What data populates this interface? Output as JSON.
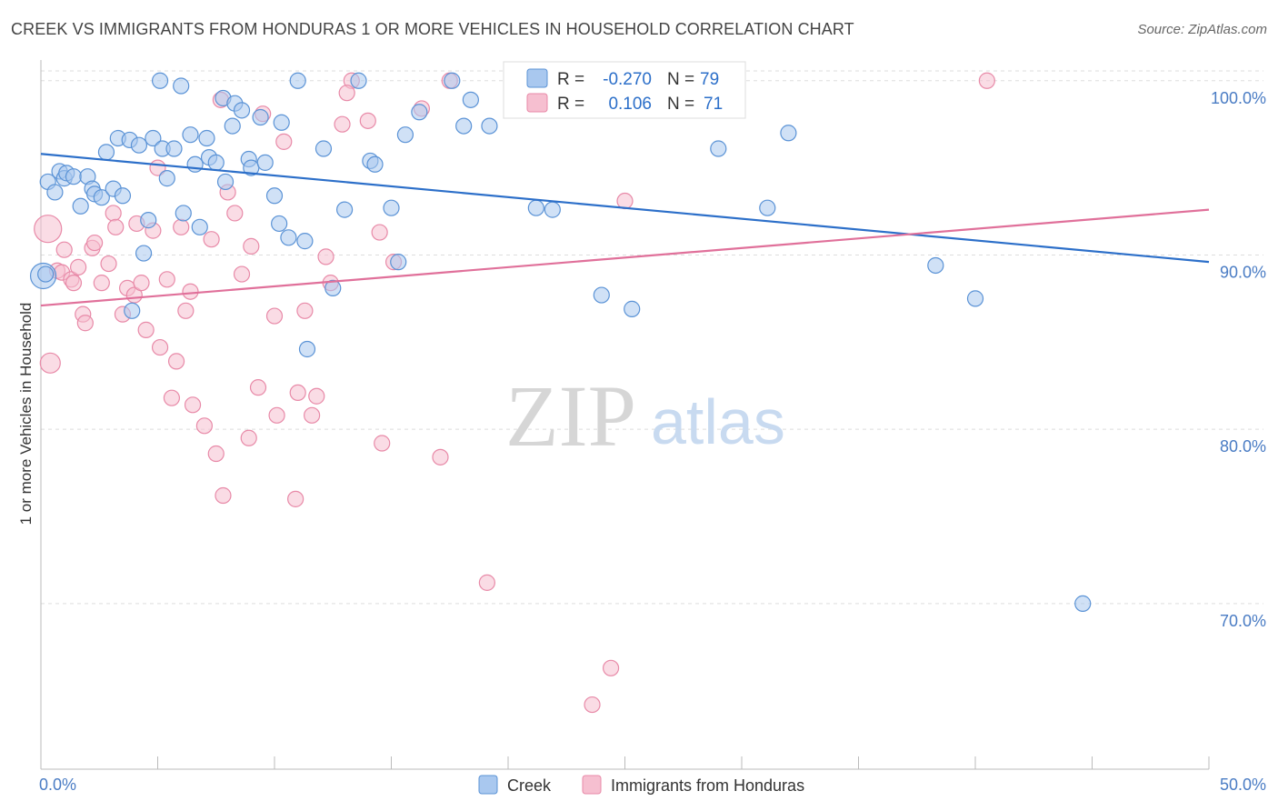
{
  "title": "CREEK VS IMMIGRANTS FROM HONDURAS 1 OR MORE VEHICLES IN HOUSEHOLD CORRELATION CHART",
  "source": "Source: ZipAtlas.com",
  "watermark": {
    "zip": "ZIP",
    "atlas": "atlas"
  },
  "colors": {
    "creek_fill": "#a9c8ef",
    "creek_stroke": "#5b93d6",
    "creek_line": "#2c6fc9",
    "honduras_fill": "#f6bfd0",
    "honduras_stroke": "#e88aa8",
    "honduras_line": "#e0709a",
    "stat_value": "#2c6fc9",
    "grid": "#dddddd"
  },
  "stats": [
    {
      "r_label": "R =",
      "r_value": "-0.270",
      "n_label": "N =",
      "n_value": "79"
    },
    {
      "r_label": "R =",
      "r_value": "0.106",
      "n_label": "N =",
      "n_value": "71"
    }
  ],
  "chart_data": {
    "type": "scatter",
    "title": "CREEK VS IMMIGRANTS FROM HONDURAS 1 OR MORE VEHICLES IN HOUSEHOLD CORRELATION CHART",
    "xlabel": "",
    "ylabel": "1 or more Vehicles in Household",
    "xlim": [
      0,
      50
    ],
    "ylim": [
      60.5,
      101.5
    ],
    "x_tick_labels": [
      "0.0%",
      "50.0%"
    ],
    "y_ticks": [
      70,
      80,
      90,
      100
    ],
    "y_tick_labels": [
      "70.0%",
      "80.0%",
      "90.0%",
      "100.0%"
    ],
    "grid": true,
    "legend_position": "bottom-center",
    "series": [
      {
        "name": "Creek",
        "trend": {
          "x": [
            0,
            50
          ],
          "y": [
            95.8,
            89.6
          ]
        },
        "points": [
          [
            0.1,
            88.8
          ],
          [
            0.3,
            94.2
          ],
          [
            0.6,
            93.6
          ],
          [
            0.8,
            94.8
          ],
          [
            1.0,
            94.4
          ],
          [
            1.1,
            94.7
          ],
          [
            1.4,
            94.5
          ],
          [
            1.7,
            92.8
          ],
          [
            2.0,
            94.5
          ],
          [
            2.2,
            93.8
          ],
          [
            2.3,
            93.5
          ],
          [
            2.6,
            93.3
          ],
          [
            2.8,
            95.9
          ],
          [
            3.1,
            93.8
          ],
          [
            3.3,
            96.7
          ],
          [
            3.5,
            93.4
          ],
          [
            3.8,
            96.6
          ],
          [
            3.9,
            86.8
          ],
          [
            4.2,
            96.3
          ],
          [
            4.4,
            90.1
          ],
          [
            4.6,
            92.0
          ],
          [
            4.8,
            96.7
          ],
          [
            5.1,
            100.0
          ],
          [
            5.2,
            96.1
          ],
          [
            5.4,
            94.4
          ],
          [
            5.7,
            96.1
          ],
          [
            6.0,
            99.7
          ],
          [
            6.1,
            92.4
          ],
          [
            6.4,
            96.9
          ],
          [
            6.6,
            95.2
          ],
          [
            6.8,
            91.6
          ],
          [
            7.1,
            96.7
          ],
          [
            7.2,
            95.6
          ],
          [
            7.5,
            95.3
          ],
          [
            7.8,
            99.0
          ],
          [
            7.9,
            94.2
          ],
          [
            8.2,
            97.4
          ],
          [
            8.3,
            98.7
          ],
          [
            8.6,
            98.3
          ],
          [
            8.9,
            95.5
          ],
          [
            9.0,
            95.0
          ],
          [
            9.6,
            95.3
          ],
          [
            9.4,
            97.9
          ],
          [
            10.0,
            93.4
          ],
          [
            10.3,
            97.6
          ],
          [
            10.2,
            91.8
          ],
          [
            10.6,
            91.0
          ],
          [
            11.0,
            100.0
          ],
          [
            11.4,
            84.6
          ],
          [
            11.3,
            90.8
          ],
          [
            12.1,
            96.1
          ],
          [
            12.5,
            88.1
          ],
          [
            13.0,
            92.6
          ],
          [
            13.6,
            100.0
          ],
          [
            14.1,
            95.4
          ],
          [
            14.3,
            95.2
          ],
          [
            15.0,
            92.7
          ],
          [
            15.3,
            89.6
          ],
          [
            15.6,
            96.9
          ],
          [
            16.2,
            98.2
          ],
          [
            17.6,
            100.0
          ],
          [
            18.1,
            97.4
          ],
          [
            18.4,
            98.9
          ],
          [
            19.2,
            97.4
          ],
          [
            20.3,
            99.0
          ],
          [
            21.2,
            92.7
          ],
          [
            21.9,
            92.6
          ],
          [
            22.1,
            99.0
          ],
          [
            24.0,
            87.7
          ],
          [
            24.9,
            99.0
          ],
          [
            25.3,
            86.9
          ],
          [
            27.6,
            98.5
          ],
          [
            29.0,
            96.1
          ],
          [
            31.1,
            92.7
          ],
          [
            32.0,
            97.0
          ],
          [
            38.3,
            89.4
          ],
          [
            40.0,
            87.5
          ],
          [
            44.6,
            70.0
          ],
          [
            0.2,
            88.9
          ]
        ]
      },
      {
        "name": "Immigrants from Honduras",
        "trend": {
          "x": [
            0,
            50
          ],
          "y": [
            87.1,
            92.6
          ]
        },
        "points": [
          [
            0.3,
            91.5
          ],
          [
            0.4,
            83.8
          ],
          [
            0.7,
            89.1
          ],
          [
            0.9,
            89.0
          ],
          [
            1.0,
            90.3
          ],
          [
            1.3,
            88.6
          ],
          [
            1.4,
            88.4
          ],
          [
            1.6,
            89.3
          ],
          [
            1.8,
            86.6
          ],
          [
            1.9,
            86.1
          ],
          [
            2.2,
            90.4
          ],
          [
            2.3,
            90.7
          ],
          [
            2.6,
            88.4
          ],
          [
            2.9,
            89.5
          ],
          [
            3.1,
            92.4
          ],
          [
            3.2,
            91.6
          ],
          [
            3.5,
            86.6
          ],
          [
            3.7,
            88.1
          ],
          [
            4.0,
            87.7
          ],
          [
            4.1,
            91.8
          ],
          [
            4.3,
            88.4
          ],
          [
            4.5,
            85.7
          ],
          [
            4.8,
            91.4
          ],
          [
            5.0,
            95.0
          ],
          [
            5.1,
            84.7
          ],
          [
            5.4,
            88.6
          ],
          [
            5.6,
            81.8
          ],
          [
            5.8,
            83.9
          ],
          [
            6.0,
            91.6
          ],
          [
            6.2,
            86.8
          ],
          [
            6.4,
            87.9
          ],
          [
            6.5,
            81.4
          ],
          [
            7.0,
            80.2
          ],
          [
            7.3,
            90.9
          ],
          [
            7.5,
            78.6
          ],
          [
            7.7,
            98.9
          ],
          [
            7.8,
            76.2
          ],
          [
            8.3,
            92.4
          ],
          [
            8.6,
            88.9
          ],
          [
            8.9,
            79.5
          ],
          [
            9.0,
            90.5
          ],
          [
            9.3,
            82.4
          ],
          [
            9.5,
            98.1
          ],
          [
            10.0,
            86.5
          ],
          [
            10.1,
            80.8
          ],
          [
            10.4,
            96.5
          ],
          [
            10.9,
            76.0
          ],
          [
            11.0,
            82.1
          ],
          [
            11.3,
            86.8
          ],
          [
            11.6,
            80.8
          ],
          [
            11.8,
            81.9
          ],
          [
            12.2,
            89.9
          ],
          [
            12.4,
            88.4
          ],
          [
            12.9,
            97.5
          ],
          [
            13.3,
            100.0
          ],
          [
            14.0,
            97.7
          ],
          [
            14.5,
            91.3
          ],
          [
            14.6,
            79.2
          ],
          [
            15.1,
            89.6
          ],
          [
            17.1,
            78.4
          ],
          [
            17.5,
            100.0
          ],
          [
            19.1,
            71.2
          ],
          [
            21.0,
            100.0
          ],
          [
            23.6,
            64.2
          ],
          [
            24.4,
            66.3
          ],
          [
            25.0,
            93.1
          ],
          [
            26.9,
            100.0
          ],
          [
            40.5,
            100.0
          ],
          [
            16.3,
            98.4
          ],
          [
            13.1,
            99.3
          ],
          [
            8.0,
            93.6
          ]
        ]
      }
    ]
  },
  "legend": [
    {
      "label": "Creek"
    },
    {
      "label": "Immigrants from Honduras"
    }
  ]
}
